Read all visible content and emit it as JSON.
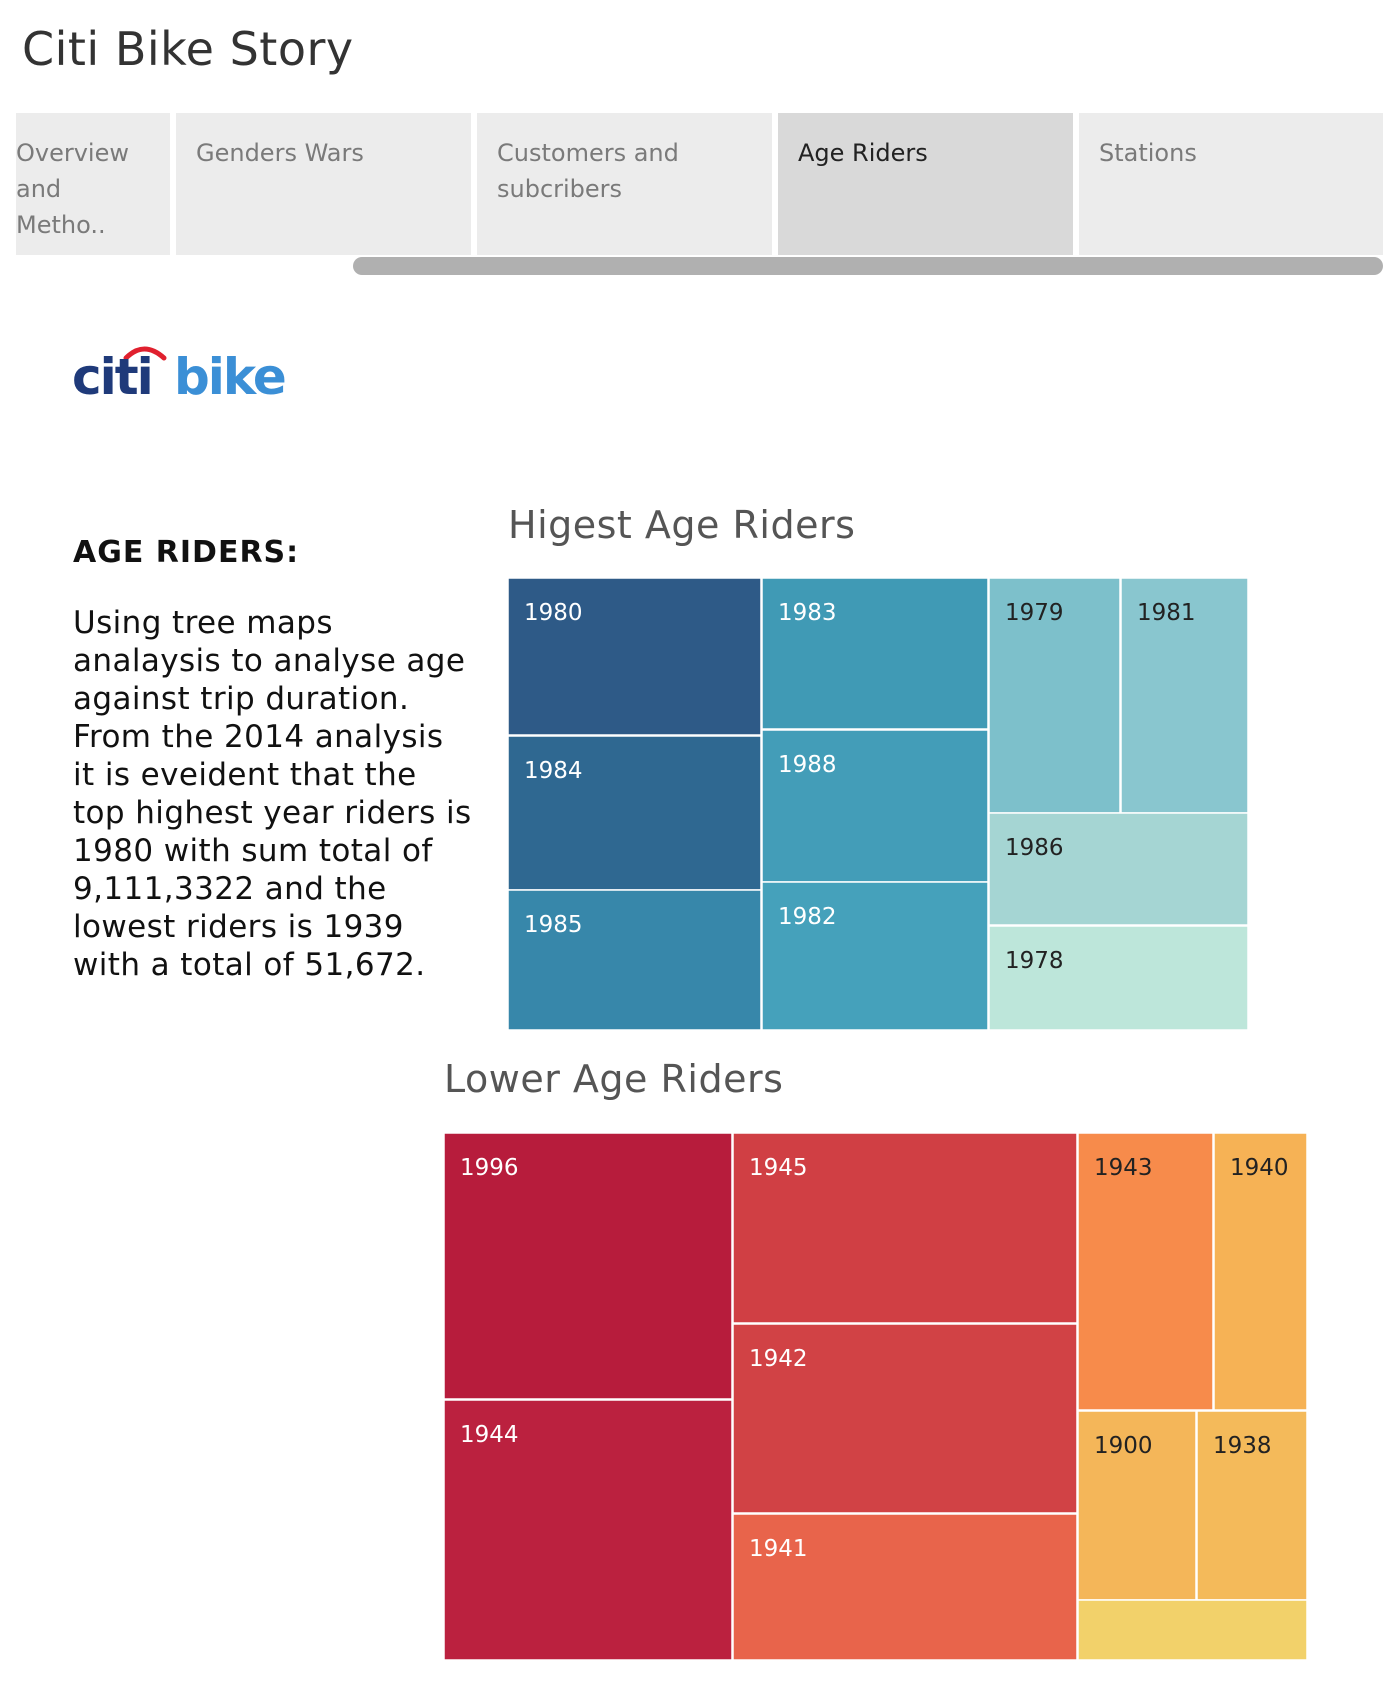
{
  "story": {
    "title": "Citi Bike Story"
  },
  "tabs": [
    {
      "line1": "Overview",
      "line2": "and Metho.."
    },
    {
      "line1": "Genders Wars",
      "line2": ""
    },
    {
      "line1": "Customers and",
      "line2": "subcribers"
    },
    {
      "line1": "Age Riders",
      "line2": ""
    },
    {
      "line1": "Stations",
      "line2": ""
    }
  ],
  "active_tab": "Age Riders",
  "logo": {
    "text_left": "citi",
    "text_right": "bike",
    "colors": {
      "citi": "#1f3a7a",
      "bike": "#3b8fd6",
      "arc": "#e0202e"
    }
  },
  "text_panel": {
    "heading": "AGE RIDERS:",
    "body": "Using tree maps analaysis to analyse age against trip duration. From the 2014 analysis it is eveident that the top highest year riders is 1980  with sum total of 9,111,3322 and the lowest riders is 1939 with a total of 51,672."
  },
  "chart_data": [
    {
      "type": "treemap",
      "title": "Higest Age Riders",
      "label_colors": {
        "light_text": "#ffffff",
        "dark_text": "#222222"
      },
      "items": [
        {
          "label": "1980",
          "color": "#2e5a87"
        },
        {
          "label": "1984",
          "color": "#2f6891"
        },
        {
          "label": "1985",
          "color": "#3787aa"
        },
        {
          "label": "1983",
          "color": "#409ab5"
        },
        {
          "label": "1988",
          "color": "#439db8"
        },
        {
          "label": "1982",
          "color": "#45a1bb"
        },
        {
          "label": "1979",
          "color": "#7dc0cb"
        },
        {
          "label": "1981",
          "color": "#89c6cf"
        },
        {
          "label": "1986",
          "color": "#a5d5d3"
        },
        {
          "label": "1978",
          "color": "#bde6da"
        }
      ]
    },
    {
      "type": "treemap",
      "title": "Lower Age Riders",
      "label_colors": {
        "light_text": "#ffffff",
        "dark_text": "#222222"
      },
      "items": [
        {
          "label": "1996",
          "color": "#b71c3c"
        },
        {
          "label": "1944",
          "color": "#bb213f"
        },
        {
          "label": "1945",
          "color": "#d03f44"
        },
        {
          "label": "1942",
          "color": "#d14245"
        },
        {
          "label": "1941",
          "color": "#e8644b"
        },
        {
          "label": "1943",
          "color": "#f78b4b"
        },
        {
          "label": "1940",
          "color": "#f6b255"
        },
        {
          "label": "1900",
          "color": "#f4b659"
        },
        {
          "label": "1938",
          "color": "#f4ba5a"
        },
        {
          "label": "",
          "color": "#f2d16a"
        }
      ]
    }
  ]
}
